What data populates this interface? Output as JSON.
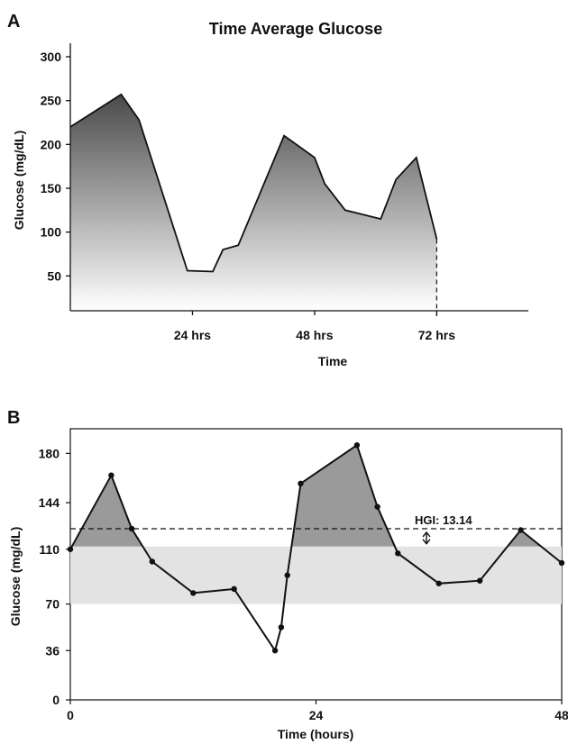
{
  "colors": {
    "line": "#111111",
    "area_top": "#4a4a4a",
    "area_bottom": "#ffffff",
    "target_band": "#e3e3e3",
    "hyper_area": "#9a9a9a"
  },
  "chart_data": [
    {
      "panel": "A",
      "type": "area",
      "title": "Time Average Glucose",
      "xlabel": "Time",
      "ylabel": "Glucose (mg/dL)",
      "xlim": [
        0,
        90
      ],
      "ylim": [
        0,
        300
      ],
      "xticks": [
        24,
        48,
        72
      ],
      "xtick_labels": [
        "24 hrs",
        "48 hrs",
        "72 hrs"
      ],
      "yticks": [
        50,
        100,
        150,
        200,
        250,
        300
      ],
      "ytick_labels": [
        "50",
        "100",
        "150",
        "200",
        "250",
        "300"
      ],
      "end_marker_x": 72,
      "series": [
        {
          "x": [
            0,
            10,
            13.5,
            23,
            28,
            30,
            33,
            42,
            48,
            50,
            54,
            61,
            64,
            68,
            72
          ],
          "y": [
            220,
            257,
            228,
            56,
            55,
            80,
            85,
            210,
            185,
            155,
            125,
            115,
            160,
            185,
            92
          ]
        }
      ]
    },
    {
      "panel": "B",
      "type": "line",
      "xlabel": "Time (hours)",
      "ylabel": "Glucose (mg/dL)",
      "xlim": [
        0,
        48
      ],
      "ylim": [
        0,
        198
      ],
      "xticks": [
        0,
        24,
        48
      ],
      "xtick_labels": [
        "0",
        "24",
        "48"
      ],
      "yticks": [
        0,
        36,
        70,
        110,
        144,
        180
      ],
      "ytick_labels": [
        "0",
        "36",
        "70",
        "110",
        "144",
        "180"
      ],
      "target_range": [
        70,
        112
      ],
      "hgi_value": 125,
      "hgi_label": "HGI: 13.14",
      "series": [
        {
          "x": [
            0,
            4,
            6,
            8,
            12,
            16,
            20,
            20.6,
            21.2,
            22.5,
            28,
            30,
            32,
            36,
            40,
            44,
            48
          ],
          "y": [
            110,
            164,
            125,
            101,
            78,
            81,
            36,
            53,
            91,
            158,
            186,
            141,
            107,
            85,
            87,
            124,
            100
          ]
        }
      ]
    }
  ]
}
